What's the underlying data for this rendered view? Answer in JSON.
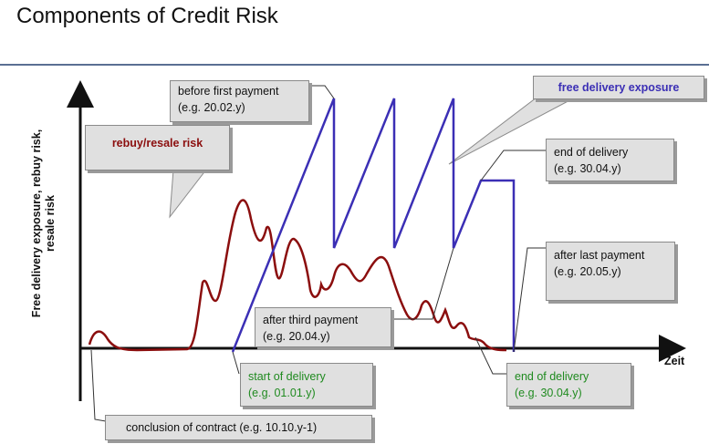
{
  "title": "Components of Credit Risk",
  "axes": {
    "y_label_line1": "Free delivery exposure, rebuy risk,",
    "y_label_line2": "resale risk",
    "x_label": "Zeit"
  },
  "labels": {
    "before_first_payment": [
      "before first payment",
      "(e.g. 20.02.y)"
    ],
    "free_delivery_exposure": "free delivery exposure",
    "rebuy_resale_risk": "rebuy/resale risk",
    "end_of_delivery_top": [
      "end of delivery",
      "(e.g. 30.04.y)"
    ],
    "after_last_payment": [
      "after last payment",
      "(e.g. 20.05.y)"
    ],
    "after_third_payment": [
      "after  third payment",
      "(e.g. 20.04.y)"
    ],
    "start_of_delivery": [
      "start of delivery",
      "(e.g. 01.01.y)"
    ],
    "end_of_delivery_bottom": [
      "end of delivery",
      "(e.g. 30.04.y)"
    ],
    "conclusion_of_contract": "conclusion of contract (e.g. 10.10.y-1)"
  },
  "colors": {
    "exposure_line": "#3b2fb5",
    "risk_line": "#8b0e0e",
    "axis": "#111111",
    "box_fill": "#e0e0e0"
  }
}
